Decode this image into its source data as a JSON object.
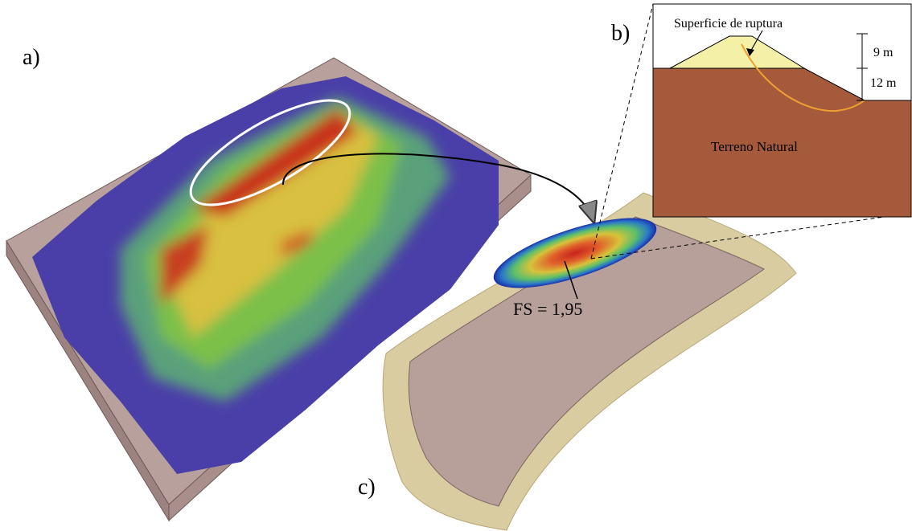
{
  "panels": {
    "a": {
      "label": "a)"
    },
    "b": {
      "label": "b)",
      "annotation": "Superficie de ruptura",
      "dimensions": [
        "9 m",
        "12 m"
      ],
      "layer": "Terreno Natural"
    },
    "c": {
      "label": "c)",
      "factor": "FS = 1,95"
    }
  }
}
